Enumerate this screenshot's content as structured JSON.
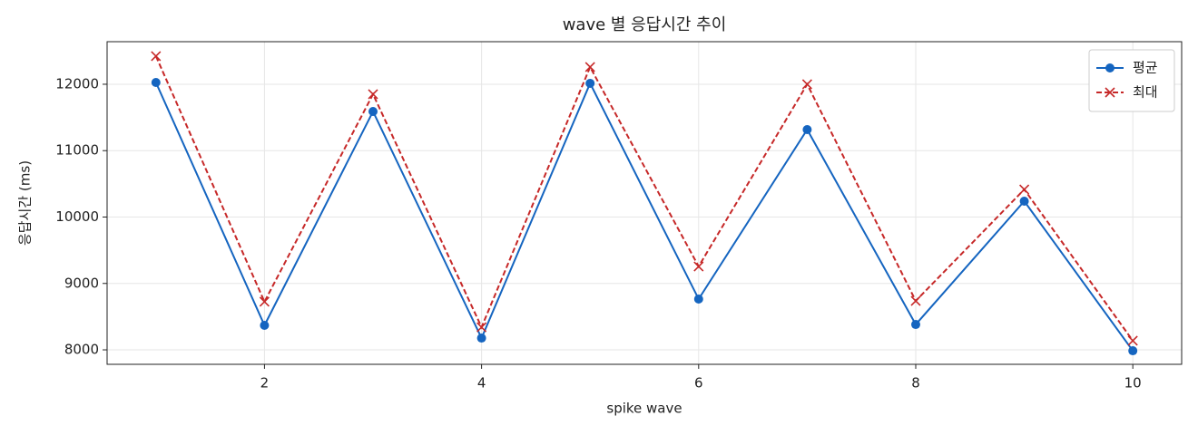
{
  "chart_data": {
    "type": "line",
    "title": "wave 별 응답시간 추이",
    "x_label": "spike wave",
    "y_label": "응답시간 (ms)",
    "x": [
      1,
      2,
      3,
      4,
      5,
      6,
      7,
      8,
      9,
      10
    ],
    "series": [
      {
        "name": "평균",
        "color": "#1565c0",
        "marker": "circle",
        "dash": "solid",
        "values": [
          12027,
          8369,
          11590,
          8177,
          12014,
          8765,
          11317,
          8382,
          10239,
          7986
        ]
      },
      {
        "name": "최대",
        "color": "#c62828",
        "marker": "x",
        "dash": "dashed",
        "values": [
          12423,
          8724,
          11850,
          8341,
          12259,
          9256,
          12000,
          8737,
          10416,
          8137
        ]
      }
    ],
    "xlim": [
      0.55,
      10.45
    ],
    "xticks": [
      2,
      4,
      6,
      8,
      10
    ],
    "ylim": [
      7782,
      12641
    ],
    "yticks": [
      8000,
      9000,
      10000,
      11000,
      12000
    ],
    "grid": true,
    "legend": "upper right"
  }
}
